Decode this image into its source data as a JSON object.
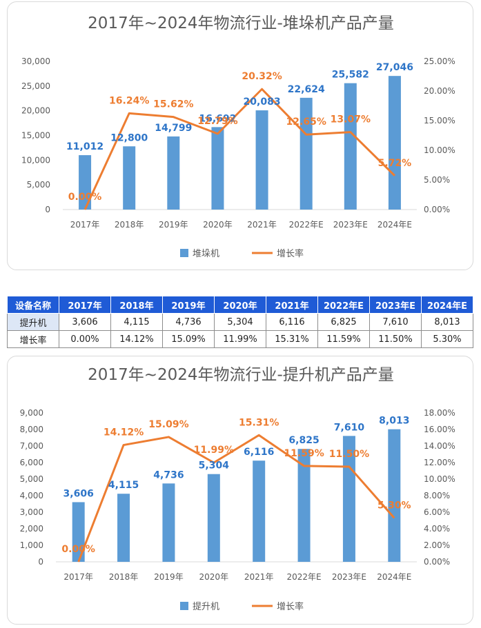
{
  "chart_data": [
    {
      "type": "bar+line",
      "title": "2017年~2024年物流行业-堆垛机产品产量",
      "categories": [
        "2017年",
        "2018年",
        "2019年",
        "2020年",
        "2021年",
        "2022年E",
        "2023年E",
        "2024年E"
      ],
      "series": [
        {
          "name": "堆垛机",
          "type": "bar",
          "axis": "left",
          "values": [
            11012,
            12800,
            14799,
            16692,
            20083,
            22624,
            25582,
            27046
          ],
          "labels": [
            "11,012",
            "12,800",
            "14,799",
            "16,692",
            "20,083",
            "22,624",
            "25,582",
            "27,046"
          ]
        },
        {
          "name": "增长率",
          "type": "line",
          "axis": "right",
          "values": [
            0.0,
            16.24,
            15.62,
            12.79,
            20.32,
            12.65,
            13.07,
            5.72
          ],
          "labels": [
            "0.00%",
            "16.24%",
            "15.62%",
            "12.79%",
            "20.32%",
            "12.65%",
            "13.07%",
            "5.72%"
          ]
        }
      ],
      "ylim_left": [
        0,
        30000
      ],
      "yticks_left": [
        "0",
        "5,000",
        "10,000",
        "15,000",
        "20,000",
        "25,000",
        "30,000"
      ],
      "ylim_right": [
        0,
        25
      ],
      "yticks_right": [
        "0.00%",
        "5.00%",
        "10.00%",
        "15.00%",
        "20.00%",
        "25.00%"
      ],
      "legend": [
        "堆垛机",
        "增长率"
      ],
      "legend_position": "bottom"
    },
    {
      "type": "bar+line",
      "title": "2017年~2024年物流行业-提升机产品产量",
      "categories": [
        "2017年",
        "2018年",
        "2019年",
        "2020年",
        "2021年",
        "2022年E",
        "2023年E",
        "2024年E"
      ],
      "series": [
        {
          "name": "提升机",
          "type": "bar",
          "axis": "left",
          "values": [
            3606,
            4115,
            4736,
            5304,
            6116,
            6825,
            7610,
            8013
          ],
          "labels": [
            "3,606",
            "4,115",
            "4,736",
            "5,304",
            "6,116",
            "6,825",
            "7,610",
            "8,013"
          ]
        },
        {
          "name": "增长率",
          "type": "line",
          "axis": "right",
          "values": [
            0.0,
            14.12,
            15.09,
            11.99,
            15.31,
            11.59,
            11.5,
            5.3
          ],
          "labels": [
            "0.00%",
            "14.12%",
            "15.09%",
            "11.99%",
            "15.31%",
            "11.59%",
            "11.50%",
            "5.30%"
          ]
        }
      ],
      "ylim_left": [
        0,
        9000
      ],
      "yticks_left": [
        "0",
        "1,000",
        "2,000",
        "3,000",
        "4,000",
        "5,000",
        "6,000",
        "7,000",
        "8,000",
        "9,000"
      ],
      "ylim_right": [
        0,
        18
      ],
      "yticks_right": [
        "0.00%",
        "2.00%",
        "4.00%",
        "6.00%",
        "8.00%",
        "10.00%",
        "12.00%",
        "14.00%",
        "16.00%",
        "18.00%"
      ],
      "legend": [
        "提升机",
        "增长率"
      ],
      "legend_position": "bottom"
    }
  ],
  "table": {
    "headers": [
      "设备名称",
      "2017年",
      "2018年",
      "2019年",
      "2020年",
      "2021年",
      "2022年E",
      "2023年E",
      "2024年E"
    ],
    "rows": [
      [
        "提升机",
        "3,606",
        "4,115",
        "4,736",
        "5,304",
        "6,116",
        "6,825",
        "7,610",
        "8,013"
      ],
      [
        "增长率",
        "0.00%",
        "14.12%",
        "15.09%",
        "11.99%",
        "15.31%",
        "11.59%",
        "11.50%",
        "5.30%"
      ]
    ]
  },
  "colors": {
    "bar": "#5b9bd5",
    "line": "#ed7d31",
    "bar_label": "#2e75c8",
    "header": "#1f5bd6"
  }
}
